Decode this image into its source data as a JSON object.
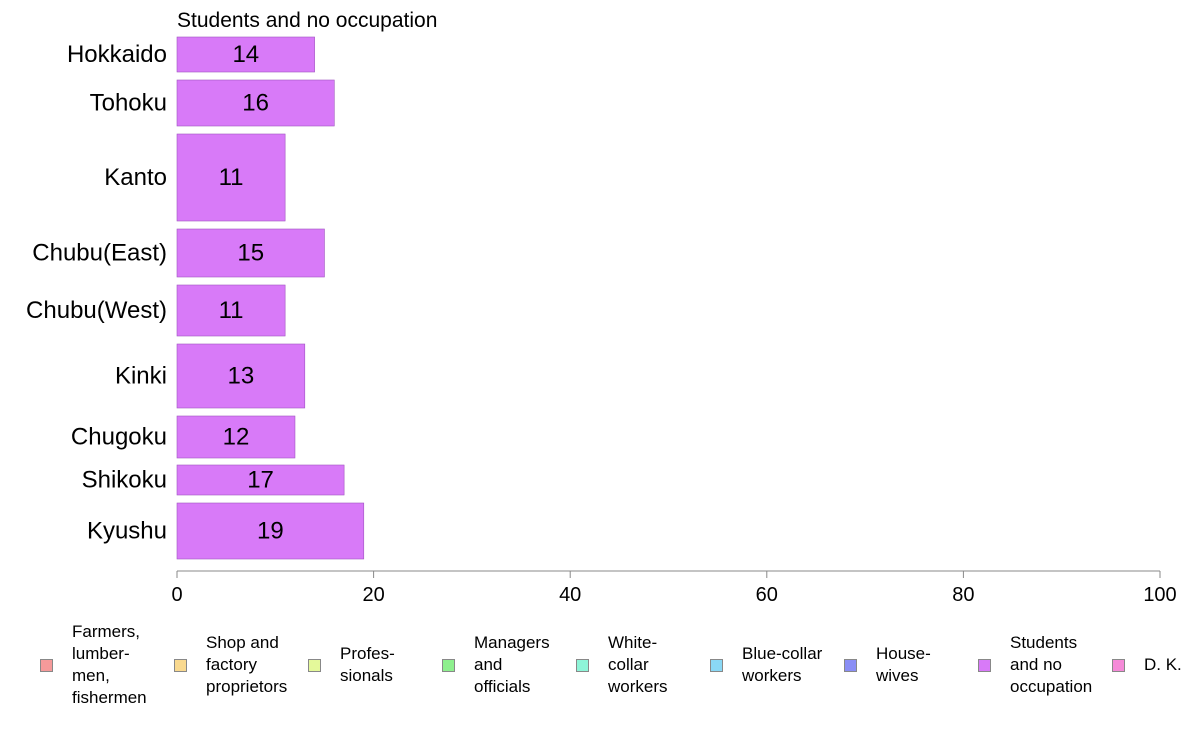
{
  "chart_data": {
    "type": "bar",
    "orientation": "horizontal",
    "title": "Students and no occupation",
    "categories": [
      "Hokkaido",
      "Tohoku",
      "Kanto",
      "Chubu(East)",
      "Chubu(West)",
      "Kinki",
      "Chugoku",
      "Shikoku",
      "Kyushu"
    ],
    "values": [
      14,
      16,
      11,
      15,
      11,
      13,
      12,
      17,
      19
    ],
    "value_labels": [
      "14",
      "16",
      "11",
      "15",
      "11",
      "13",
      "12",
      "17",
      "19"
    ],
    "xlim": [
      0,
      100
    ],
    "xticks": [
      "0",
      "20",
      "40",
      "60",
      "80",
      "100"
    ],
    "bar_color": "#d87af8",
    "grid": false,
    "legend_position": "bottom"
  },
  "legend": [
    {
      "label": "Farmers,\nlumber-\nmen,\nfishermen",
      "color": "#f59a9a"
    },
    {
      "label": "Shop and\nfactory\nproprietors",
      "color": "#f9d98f"
    },
    {
      "label": "Profes-\nsionals",
      "color": "#e4f99a"
    },
    {
      "label": "Managers\nand\nofficials",
      "color": "#8ef08e"
    },
    {
      "label": "White-\ncollar\nworkers",
      "color": "#8ef5d8"
    },
    {
      "label": "Blue-collar\nworkers",
      "color": "#8ad8f5"
    },
    {
      "label": "House-\nwives",
      "color": "#8a8ef5"
    },
    {
      "label": "Students\nand no\noccupation",
      "color": "#d87af8"
    },
    {
      "label": "D. K.",
      "color": "#f58ad8"
    }
  ]
}
